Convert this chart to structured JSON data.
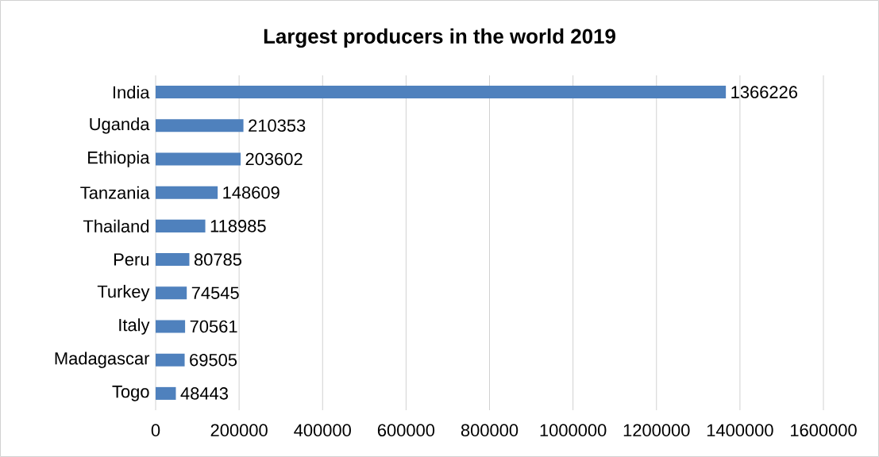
{
  "chart_data": {
    "type": "bar",
    "orientation": "horizontal",
    "title": "Largest producers in the world 2019",
    "categories": [
      "India",
      "Uganda",
      "Ethiopia",
      "Tanzania",
      "Thailand",
      "Peru",
      "Turkey",
      "Italy",
      "Madagascar",
      "Togo"
    ],
    "values": [
      1366226,
      210353,
      203602,
      148609,
      118985,
      80785,
      74545,
      70561,
      69505,
      48443
    ],
    "color": "#4f81bd",
    "xlim": [
      0,
      1600000
    ],
    "xticks": [
      0,
      200000,
      400000,
      600000,
      800000,
      1000000,
      1200000,
      1400000,
      1600000
    ],
    "grid": "x",
    "data_labels": true
  }
}
